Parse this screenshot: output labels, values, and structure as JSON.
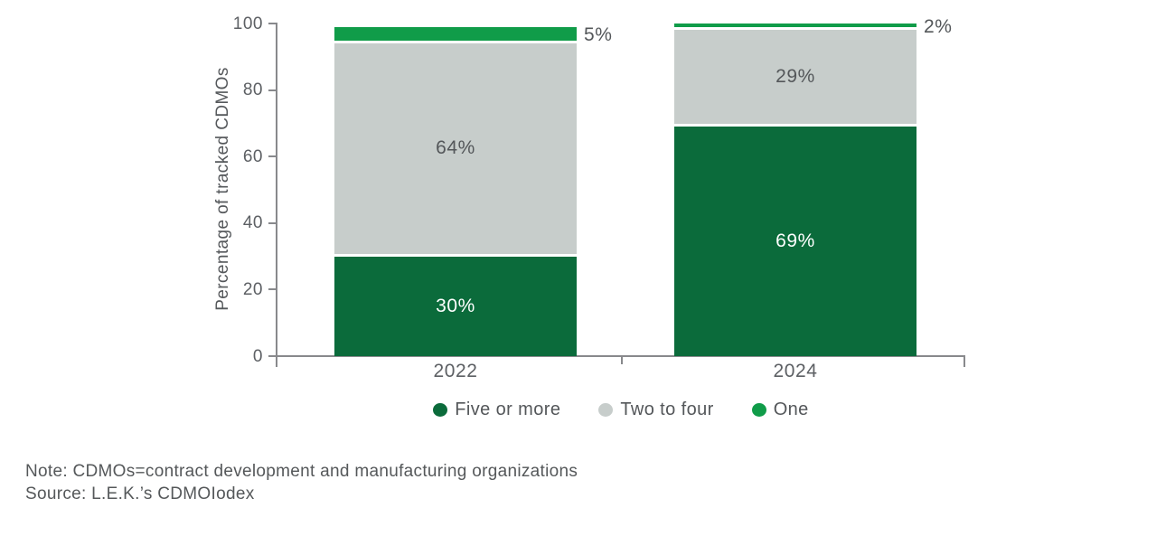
{
  "chart_data": {
    "type": "bar",
    "stacked": true,
    "categories": [
      "2022",
      "2024"
    ],
    "series": [
      {
        "name": "Five or more",
        "color": "#0B6B3B",
        "label_color": "#ffffff",
        "values": [
          30,
          69
        ]
      },
      {
        "name": "Two to four",
        "color": "#C7CDCB",
        "label_color": "#54575a",
        "values": [
          64,
          29
        ]
      },
      {
        "name": "One",
        "color": "#109C49",
        "label_color": "#54575a",
        "values": [
          5,
          2
        ]
      }
    ],
    "segment_labels": [
      [
        "30%",
        "69%"
      ],
      [
        "64%",
        "29%"
      ],
      [
        "5%",
        "2%"
      ]
    ],
    "ylabel": "Percentage of tracked CDMOs",
    "yticks": [
      "0",
      "20",
      "40",
      "60",
      "80",
      "100"
    ],
    "ytick_values": [
      0,
      20,
      40,
      60,
      80,
      100
    ],
    "ylim": [
      0,
      100
    ],
    "value_suffix": "%",
    "grid": false,
    "legend_position": "bottom",
    "axis_color": "#88898c",
    "tick_label_color": "#5d6064",
    "outside_label_color": "#54575a"
  },
  "note": "Note: CDMOs=contract development and manufacturing organizations",
  "source": "Source: L.E.K.’s CDMOIodex"
}
